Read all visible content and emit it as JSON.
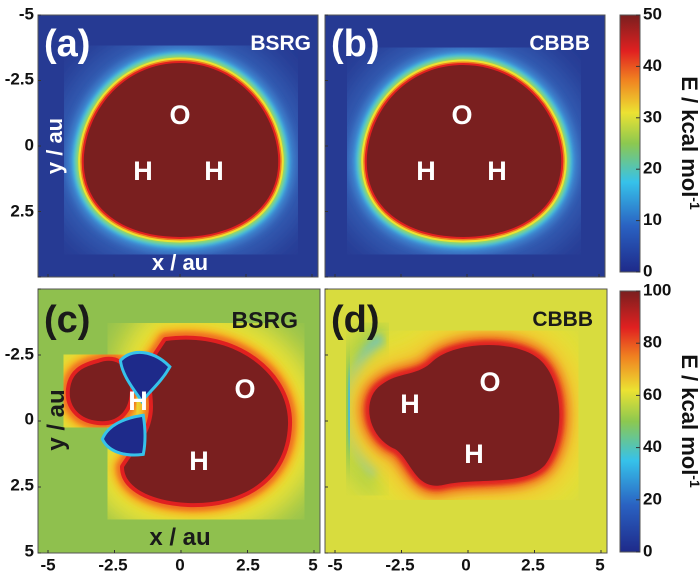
{
  "chart_data": [
    {
      "type": "heatmap",
      "panel": "(a)",
      "method": "BSRG",
      "xlabel": "x / au",
      "ylabel": "y / au",
      "xlim": [
        -5,
        5
      ],
      "ylim": [
        -5,
        5
      ],
      "y_ticks": [
        "-5",
        "-2.5",
        "0",
        "2.5"
      ],
      "atoms": [
        "O",
        "H",
        "H"
      ],
      "colorbar": {
        "label": "E / kcal mol-1",
        "range": [
          0,
          50
        ],
        "ticks": [
          "0",
          "10",
          "20",
          "30",
          "40",
          "50"
        ]
      },
      "background_color": "#263a93"
    },
    {
      "type": "heatmap",
      "panel": "(b)",
      "method": "CBBB",
      "xlim": [
        -5,
        5
      ],
      "ylim": [
        -5,
        5
      ],
      "atoms": [
        "O",
        "H",
        "H"
      ],
      "colorbar": {
        "label": "E / kcal mol-1",
        "range": [
          0,
          50
        ],
        "ticks": [
          "0",
          "10",
          "20",
          "30",
          "40",
          "50"
        ]
      },
      "background_color": "#263a93"
    },
    {
      "type": "heatmap",
      "panel": "(c)",
      "method": "BSRG",
      "xlabel": "x / au",
      "ylabel": "y / au",
      "xlim": [
        -5,
        5
      ],
      "ylim": [
        -5,
        5
      ],
      "x_ticks": [
        "-5",
        "-2.5",
        "0",
        "2.5",
        "5"
      ],
      "y_ticks": [
        "-2.5",
        "0",
        "2.5",
        "5"
      ],
      "atoms": [
        "O",
        "H",
        "H"
      ],
      "colorbar": {
        "label": "E / kcal mol-1",
        "range": [
          0,
          100
        ],
        "ticks": [
          "0",
          "20",
          "40",
          "60",
          "80",
          "100"
        ]
      },
      "background_color": "#8fc04e"
    },
    {
      "type": "heatmap",
      "panel": "(d)",
      "method": "CBBB",
      "xlim": [
        -5,
        5
      ],
      "ylim": [
        -5,
        5
      ],
      "x_ticks": [
        "-5",
        "-2.5",
        "0",
        "2.5",
        "5"
      ],
      "atoms": [
        "O",
        "H",
        "H"
      ],
      "colorbar": {
        "label": "E / kcal mol-1",
        "range": [
          0,
          100
        ],
        "ticks": [
          "0",
          "20",
          "40",
          "60",
          "80",
          "100"
        ]
      },
      "background_color": "#d8dc3e"
    }
  ],
  "colormap": [
    "#1e2a8a",
    "#2a62c2",
    "#36c2ea",
    "#8cc850",
    "#ece232",
    "#f08020",
    "#e02020",
    "#7a1f1f"
  ]
}
